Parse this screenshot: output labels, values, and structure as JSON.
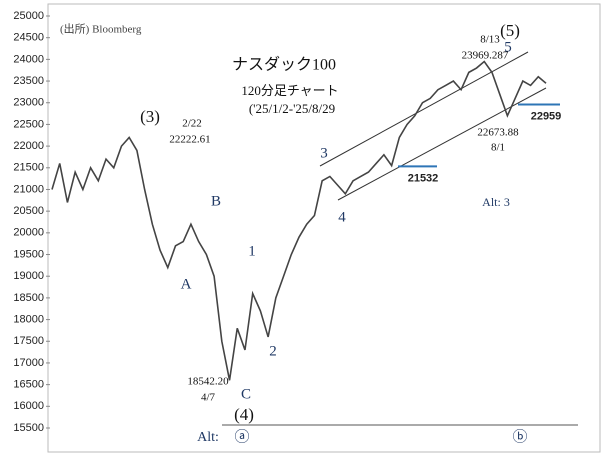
{
  "chart_data": {
    "type": "line",
    "categories": [
      null,
      null,
      null,
      null,
      null,
      null,
      null,
      null,
      null,
      null,
      null,
      null,
      null,
      null,
      null,
      null,
      null,
      null,
      null,
      null,
      null,
      null,
      null,
      null,
      null,
      null,
      null,
      null,
      null,
      null,
      null,
      null,
      null,
      null,
      null,
      null,
      null,
      null,
      null,
      null,
      null,
      null,
      null,
      null,
      null,
      null,
      null,
      null,
      null,
      null,
      null,
      null,
      null,
      null,
      null,
      null,
      null,
      null,
      null,
      null,
      null,
      null,
      null,
      null,
      null
    ],
    "values": [
      21000,
      21600,
      20700,
      21400,
      21000,
      21500,
      21200,
      21700,
      21500,
      22000,
      22200,
      21900,
      21000,
      20200,
      19600,
      19200,
      19700,
      19800,
      20200,
      19800,
      19500,
      19000,
      17500,
      16600,
      17800,
      17300,
      18600,
      18200,
      17600,
      18500,
      19000,
      19500,
      19900,
      20200,
      20400,
      21200,
      21300,
      21100,
      20900,
      21200,
      21300,
      21400,
      21600,
      21800,
      21550,
      22200,
      22500,
      22700,
      23000,
      23100,
      23300,
      23400,
      23500,
      23300,
      23700,
      23800,
      23950,
      23700,
      23200,
      22700,
      23100,
      23500,
      23400,
      23600,
      23450
    ],
    "color": "#444444",
    "ylim": [
      15500,
      25000
    ],
    "yticks": [
      15500,
      16000,
      16500,
      17000,
      17500,
      18000,
      18500,
      19000,
      19500,
      20000,
      20500,
      21000,
      21500,
      22000,
      22500,
      23000,
      23500,
      24000,
      24500,
      25000
    ],
    "levels": [
      {
        "value": 21532,
        "color": "#2e75b6"
      },
      {
        "value": 22959,
        "color": "#2e75b6"
      }
    ],
    "annotations": [
      "(出所) Bloomberg",
      "ナスダック100",
      "120分足チャート",
      "('25/1/2-'25/8/29",
      "(3)",
      "2/22",
      "22222.61",
      "B",
      "A",
      "1",
      "2",
      "C",
      "18542.20",
      "4/7",
      "(4)",
      "Alt:",
      "ⓐ",
      "ⓑ",
      "3",
      "4",
      "(5)",
      "5",
      "8/13",
      "23969.287",
      "22673.88",
      "8/1",
      "Alt:  3"
    ]
  }
}
